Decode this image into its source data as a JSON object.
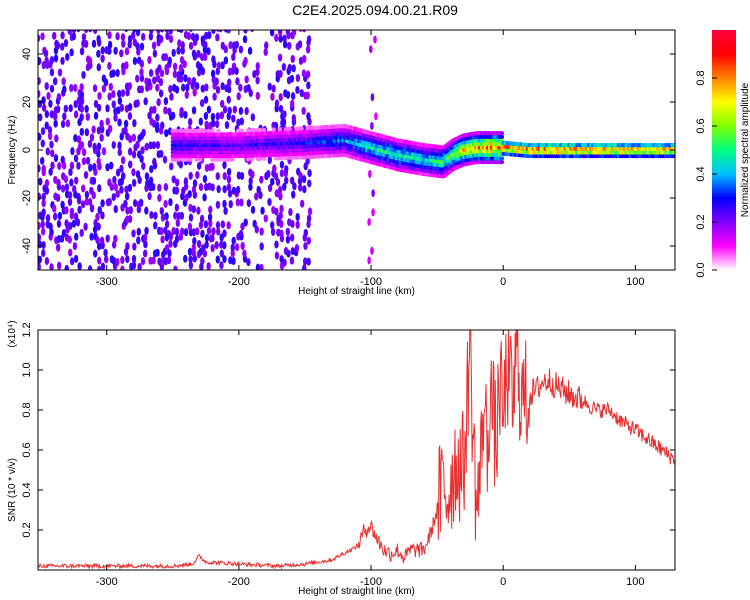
{
  "title": "C2E4.2025.094.00.21.R09",
  "chart_data": [
    {
      "type": "heatmap",
      "xlabel": "Height of straight line (km)",
      "ylabel": "Frequency (Hz)",
      "xlim": [
        -352,
        130
      ],
      "ylim": [
        -50,
        50
      ],
      "x_ticks": [
        -300,
        -200,
        -100,
        0,
        100
      ],
      "y_ticks": [
        -40,
        -20,
        0,
        20,
        40
      ],
      "colorbar": {
        "label": "Normalized spectral amplitude",
        "range": [
          0,
          1
        ],
        "ticks": [
          "0.0",
          "0.2",
          "0.4",
          "0.6",
          "0.8"
        ],
        "colormap": [
          "#ffffff",
          "#ff00ff",
          "#8000ff",
          "#0000ff",
          "#00c0ff",
          "#00ff80",
          "#80ff00",
          "#ffff00",
          "#ff8000",
          "#ff0000",
          "#ff0040"
        ]
      },
      "ridge": {
        "x": [
          -250,
          -200,
          -150,
          -120,
          -100,
          -80,
          -60,
          -45,
          -38,
          -30,
          -20,
          -10,
          0,
          20,
          50,
          80,
          130
        ],
        "frequency": [
          2,
          2,
          3,
          4,
          1,
          -2,
          -4,
          -5,
          -2,
          0,
          1,
          1,
          1,
          0,
          0,
          0,
          0
        ],
        "amplitude": [
          0.3,
          0.25,
          0.3,
          0.4,
          0.5,
          0.55,
          0.5,
          0.55,
          0.6,
          0.75,
          0.8,
          0.9,
          0.9,
          0.95,
          0.9,
          0.9,
          0.85
        ]
      },
      "noise_region": {
        "x_start": -352,
        "x_end": -145,
        "level": 0.25
      }
    },
    {
      "type": "line",
      "xlabel": "Height of straight line (km)",
      "ylabel": "SNR (10 * v/v)",
      "y_multiplier": "(x10⁴)",
      "xlim": [
        -352,
        130
      ],
      "ylim": [
        0,
        1.2
      ],
      "x_ticks": [
        -300,
        -200,
        -100,
        0,
        100
      ],
      "y_ticks": [
        "0.2",
        "0.4",
        "0.6",
        "0.8",
        "1.0",
        "1.2"
      ],
      "color": "#e83030",
      "series": [
        {
          "x": [
            -352,
            -300,
            -250,
            -235,
            -230,
            -225,
            -200,
            -170,
            -150,
            -130,
            -110,
            -105,
            -100,
            -95,
            -90,
            -85,
            -80,
            -75,
            -70,
            -60,
            -55,
            -50,
            -45,
            -42,
            -38,
            -35,
            -30,
            -27,
            -25,
            -23,
            -20,
            -17,
            -15,
            -12,
            -10,
            -8,
            -5,
            -3,
            0,
            3,
            5,
            8,
            10,
            12,
            15,
            20,
            25,
            30,
            35,
            40,
            50,
            60,
            70,
            80,
            90,
            100,
            110,
            120,
            130
          ],
          "y": [
            0.02,
            0.02,
            0.02,
            0.03,
            0.07,
            0.04,
            0.03,
            0.02,
            0.03,
            0.05,
            0.12,
            0.2,
            0.22,
            0.15,
            0.1,
            0.08,
            0.1,
            0.06,
            0.1,
            0.1,
            0.18,
            0.3,
            0.42,
            0.38,
            0.5,
            0.55,
            0.5,
            0.88,
            1.18,
            0.7,
            0.3,
            0.5,
            0.85,
            0.6,
            0.92,
            0.8,
            0.6,
            0.95,
            0.75,
            1.02,
            0.9,
            0.85,
            1.1,
            0.95,
            0.85,
            0.88,
            0.9,
            0.94,
            0.95,
            0.92,
            0.88,
            0.85,
            0.8,
            0.8,
            0.74,
            0.7,
            0.65,
            0.6,
            0.55
          ]
        }
      ]
    }
  ]
}
